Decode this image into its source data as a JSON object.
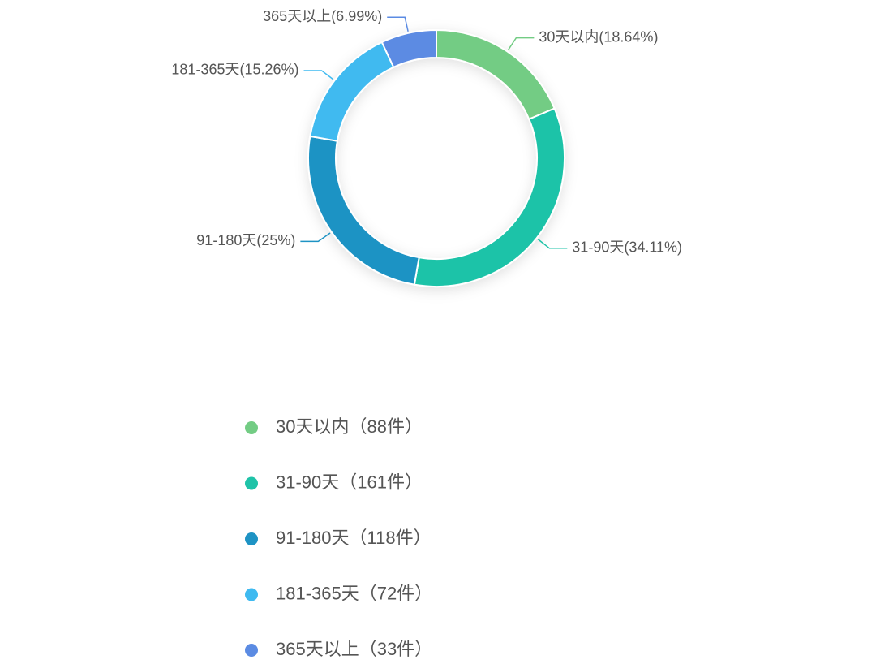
{
  "chart_data": {
    "type": "donut",
    "categories": [
      "30天以内",
      "31-90天",
      "91-180天",
      "181-365天",
      "365天以上"
    ],
    "values": [
      18.64,
      34.11,
      25,
      15.26,
      6.99
    ],
    "value_labels": [
      "30天以内(18.64%)",
      "31-90天(34.11%)",
      "91-180天(25%)",
      "181-365天(15.26%)",
      "365天以上(6.99%)"
    ],
    "colors": [
      "#73cc84",
      "#1fc3a8",
      "#1e93c4",
      "#3fbaf0",
      "#5b8be3"
    ],
    "legend_labels": [
      "30天以内（88件）",
      "31-90天（161件）",
      "91-180天（118件）",
      "181-365天（72件）",
      "365天以上（33件）"
    ]
  }
}
